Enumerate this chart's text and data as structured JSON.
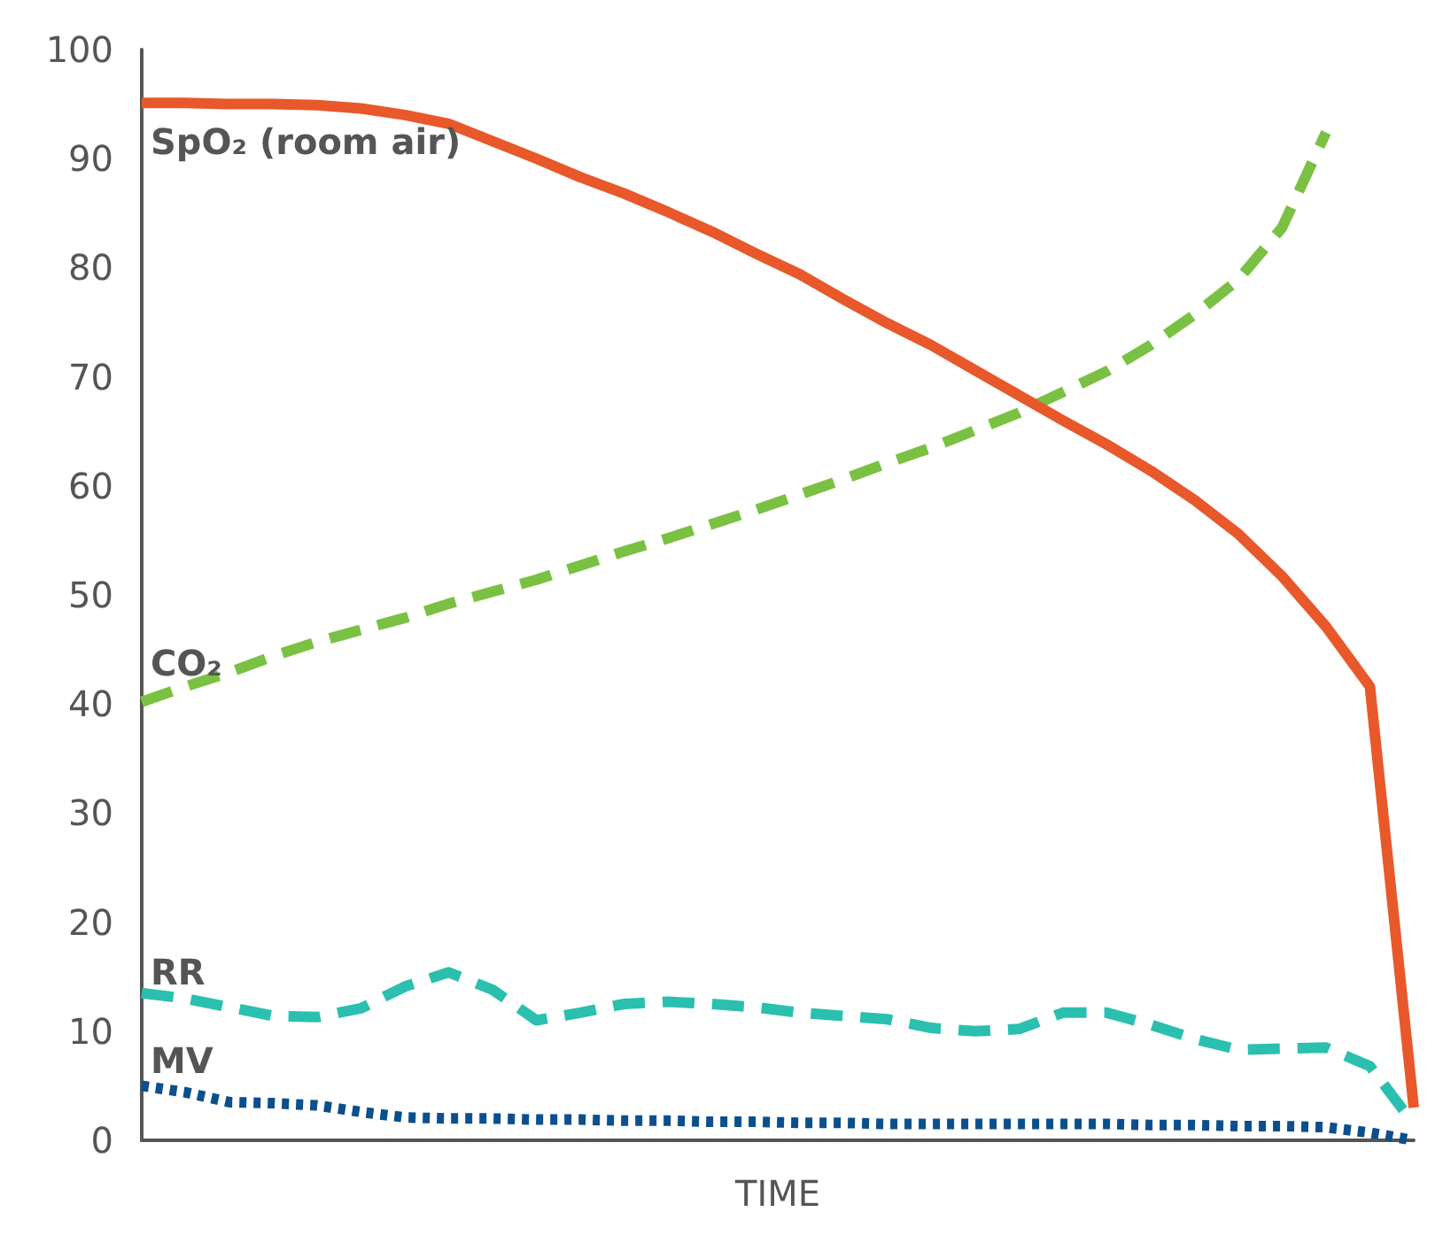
{
  "chart_data": {
    "type": "line",
    "xlabel": "TIME",
    "categories": [
      null,
      null,
      null,
      null,
      null,
      null,
      null,
      null,
      null,
      null,
      null,
      null,
      null,
      null,
      null,
      null,
      null,
      null,
      null,
      null,
      null,
      null,
      null,
      null,
      null,
      null,
      null,
      null,
      null,
      null
    ],
    "ylim": [
      0,
      100
    ],
    "yticks": [
      0,
      10,
      20,
      30,
      40,
      50,
      60,
      70,
      80,
      90,
      100
    ],
    "grid": false,
    "legend": false,
    "marker": "none",
    "series": [
      {
        "name": "SpO₂ (room air)",
        "color": "#e8582a",
        "line_style": "solid",
        "values": [
          95.1,
          95.1,
          95,
          95,
          94.9,
          94.6,
          94,
          93.2,
          91.6,
          90,
          88.3,
          86.8,
          85.1,
          83.3,
          81.3,
          79.4,
          77.1,
          74.9,
          72.9,
          70.6,
          68.3,
          66,
          63.8,
          61.4,
          58.7,
          55.6,
          51.7,
          47.1,
          41.6,
          3
        ]
      },
      {
        "name": "CO₂",
        "color": "#7ac143",
        "line_style": "dashed",
        "values": [
          40.2,
          41.6,
          42.9,
          44.4,
          45.7,
          46.8,
          47.9,
          49.2,
          50.3,
          51.4,
          52.7,
          54,
          55.2,
          56.5,
          57.8,
          59.2,
          60.6,
          62.1,
          63.5,
          65.1,
          66.7,
          68.6,
          70.5,
          72.9,
          75.7,
          78.9,
          83.7,
          92.4,
          null,
          null
        ]
      },
      {
        "name": "RR",
        "color": "#2bbfb0",
        "line_style": "dashed",
        "values": [
          13.5,
          13,
          12.2,
          11.4,
          11.3,
          12.1,
          14.1,
          15.4,
          13.8,
          11,
          11.7,
          12.5,
          12.7,
          12.5,
          12.2,
          11.7,
          11.4,
          11.1,
          10.3,
          10,
          10.2,
          11.7,
          11.7,
          10.6,
          9.3,
          8.3,
          8.4,
          8.5,
          6.8,
          1.5
        ]
      },
      {
        "name": "MV",
        "color": "#0b4f8c",
        "line_style": "dotted",
        "values": [
          5,
          4.4,
          3.5,
          3.4,
          3.2,
          2.6,
          2.1,
          2,
          2,
          1.9,
          1.9,
          1.8,
          1.8,
          1.7,
          1.7,
          1.6,
          1.6,
          1.5,
          1.5,
          1.5,
          1.5,
          1.5,
          1.5,
          1.4,
          1.4,
          1.3,
          1.3,
          1.2,
          0.7,
          0
        ]
      }
    ]
  }
}
